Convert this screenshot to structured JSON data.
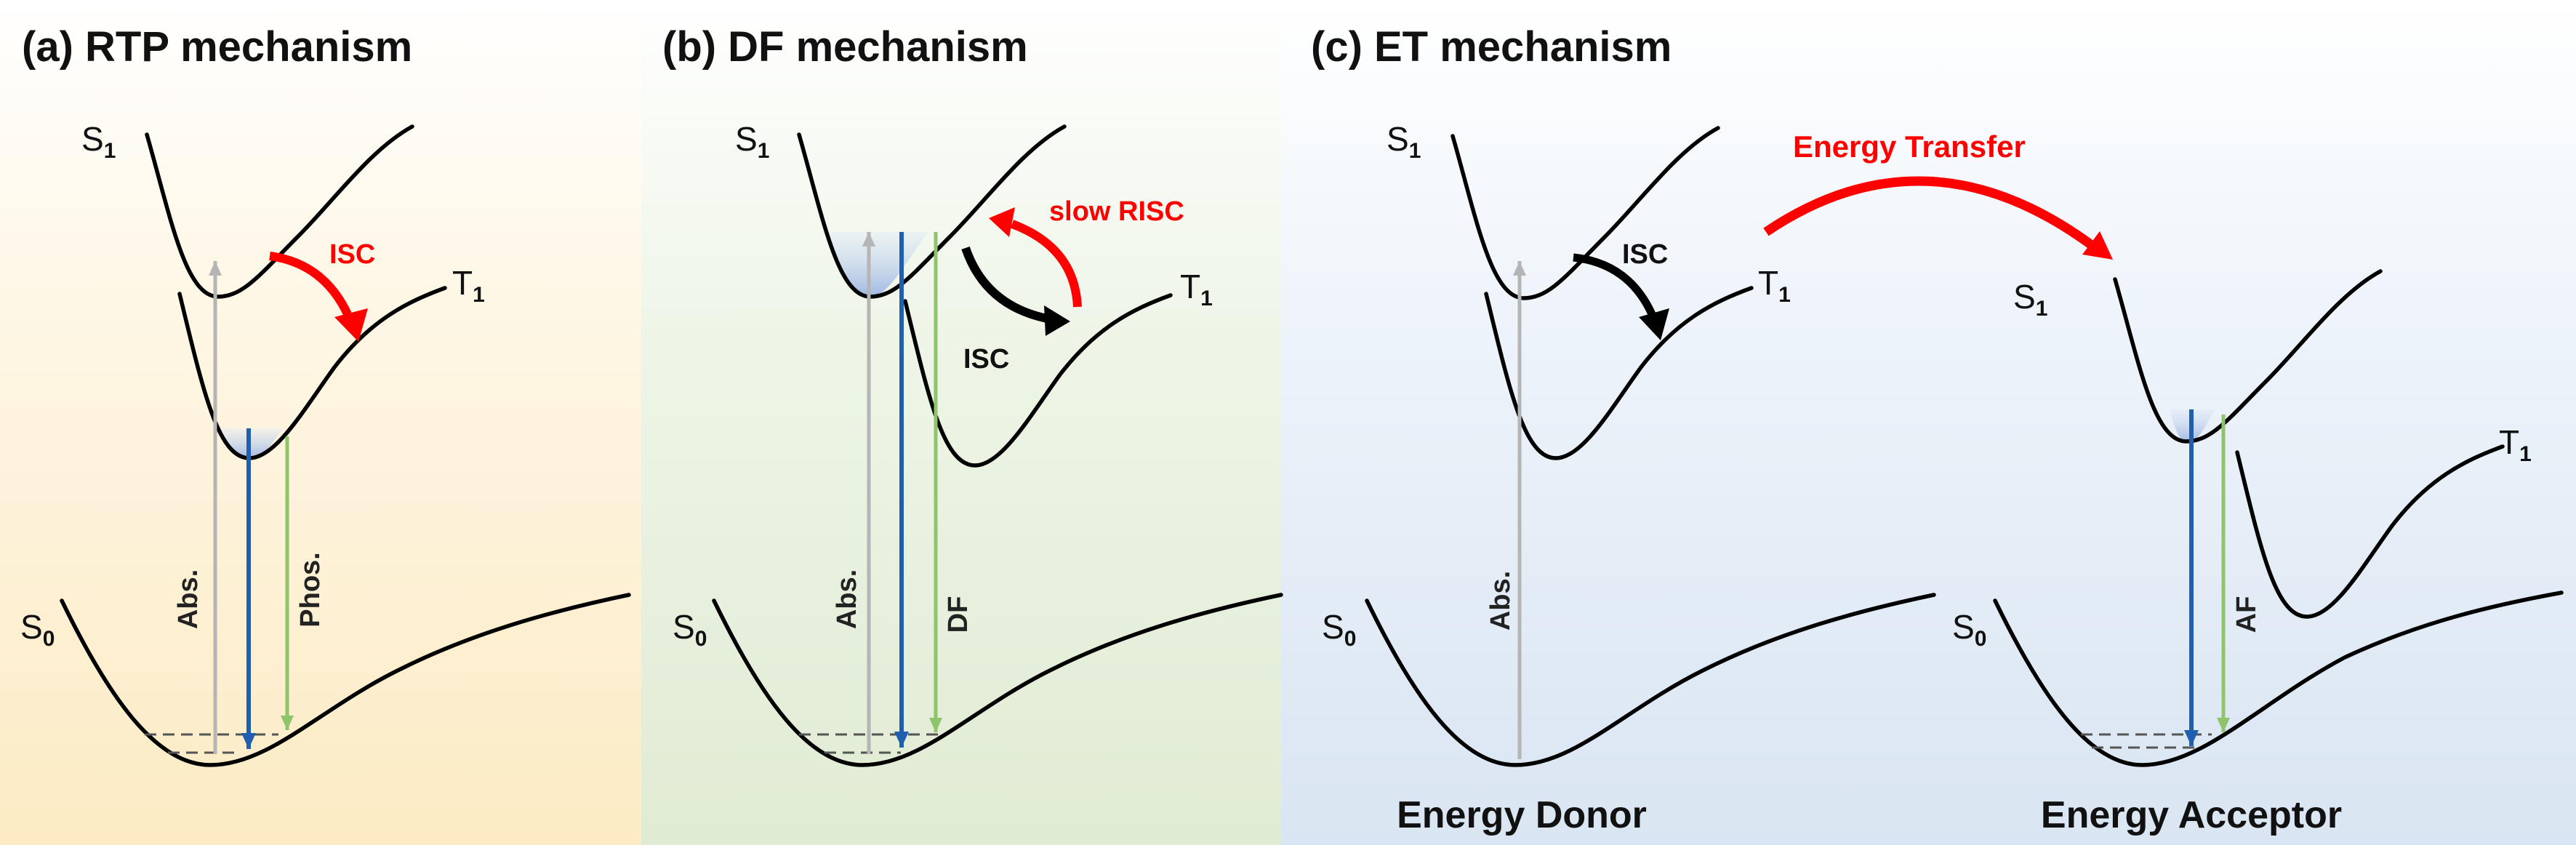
{
  "colors": {
    "absorption": "#b5b5b5",
    "emission": "#1f5fae",
    "slow_emission": "#8fc46a",
    "highlight_arrow": "#ff0000",
    "isc_arrow_dark": "#000000",
    "panel_a_bg": "#fcedc9",
    "panel_b_bg": "#e1ecd5",
    "panel_c_bg": "#dbe7f3"
  },
  "panel_a": {
    "title": "(a) RTP mechanism",
    "s1": {
      "main": "S",
      "sub": "1"
    },
    "t1": {
      "main": "T",
      "sub": "1"
    },
    "s0": {
      "main": "S",
      "sub": "0"
    },
    "isc": "ISC",
    "abs": "Abs.",
    "phos": "Phos."
  },
  "panel_b": {
    "title": "(b) DF mechanism",
    "s1": {
      "main": "S",
      "sub": "1"
    },
    "t1": {
      "main": "T",
      "sub": "1"
    },
    "s0": {
      "main": "S",
      "sub": "0"
    },
    "isc": "ISC",
    "risc": "slow RISC",
    "abs": "Abs.",
    "df": "DF"
  },
  "panel_c": {
    "title": "(c) ET mechanism",
    "energy_transfer": "Energy Transfer",
    "donor": {
      "label": "Energy Donor",
      "s1": {
        "main": "S",
        "sub": "1"
      },
      "t1": {
        "main": "T",
        "sub": "1"
      },
      "s0": {
        "main": "S",
        "sub": "0"
      },
      "isc": "ISC",
      "abs": "Abs."
    },
    "acceptor": {
      "label": "Energy Acceptor",
      "s1": {
        "main": "S",
        "sub": "1"
      },
      "t1": {
        "main": "T",
        "sub": "1"
      },
      "s0": {
        "main": "S",
        "sub": "0"
      },
      "af": "AF"
    }
  }
}
